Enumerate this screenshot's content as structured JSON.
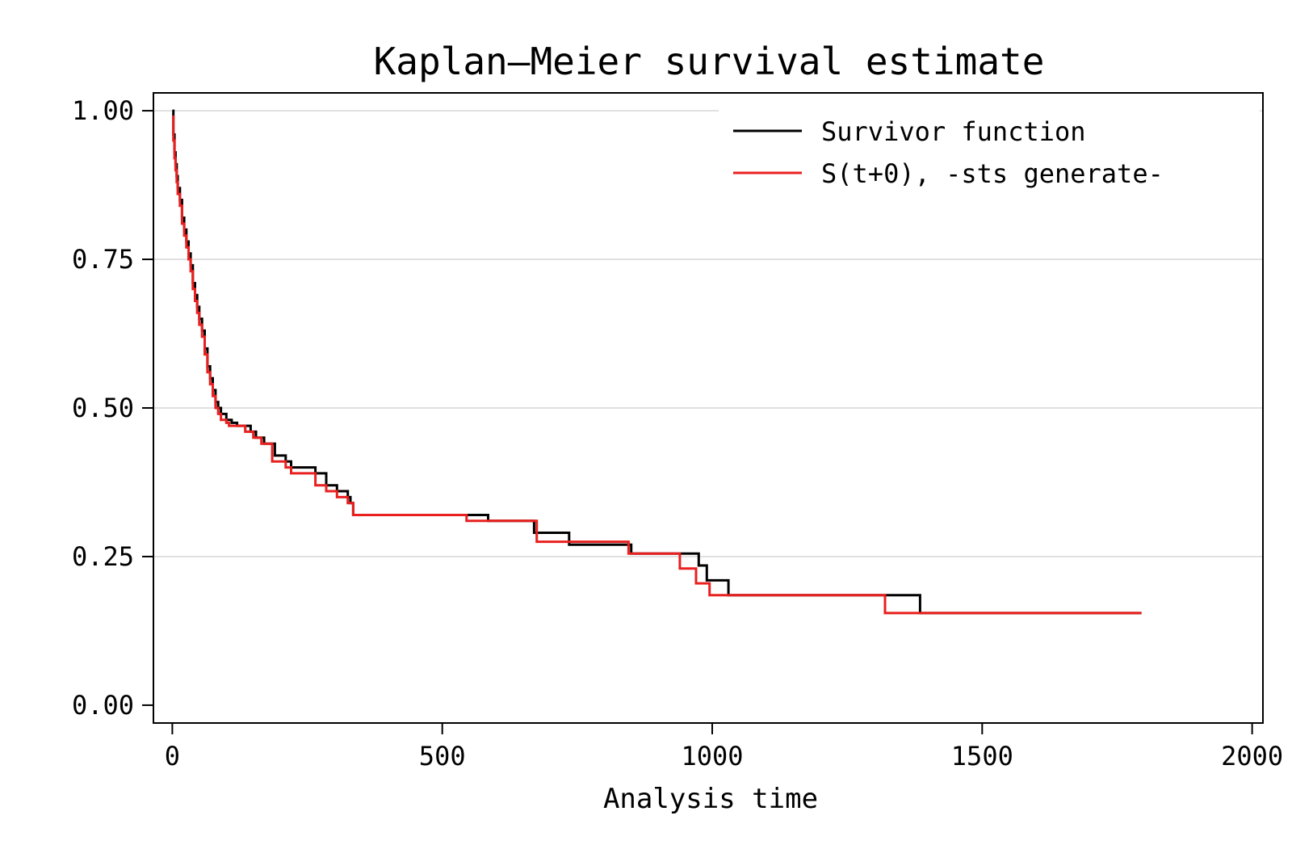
{
  "chart_data": {
    "type": "line",
    "step": true,
    "title": "Kaplan–Meier survival estimate",
    "xlabel": "Analysis time",
    "ylabel": "",
    "xlim": [
      -35,
      2020
    ],
    "ylim": [
      -0.03,
      1.03
    ],
    "xticks": [
      0,
      500,
      1000,
      1500,
      2000
    ],
    "xtick_labels": [
      "0",
      "500",
      "1000",
      "1500",
      "2000"
    ],
    "yticks": [
      0,
      0.25,
      0.5,
      0.75,
      1.0
    ],
    "ytick_labels": [
      "0.00",
      "0.25",
      "0.50",
      "0.75",
      "1.00"
    ],
    "grid": "horizontal",
    "legend_position": "top-right",
    "series": [
      {
        "name": "Survivor function",
        "color": "#000000",
        "x": [
          0,
          2,
          4,
          6,
          8,
          10,
          14,
          18,
          22,
          26,
          30,
          34,
          38,
          42,
          46,
          50,
          55,
          60,
          65,
          70,
          75,
          80,
          85,
          90,
          100,
          110,
          120,
          145,
          155,
          170,
          190,
          210,
          220,
          265,
          285,
          305,
          325,
          330,
          335,
          545,
          585,
          670,
          735,
          850,
          975,
          990,
          1030,
          1330,
          1385,
          1795
        ],
        "y": [
          1.0,
          0.96,
          0.93,
          0.91,
          0.89,
          0.87,
          0.85,
          0.82,
          0.8,
          0.78,
          0.76,
          0.74,
          0.71,
          0.69,
          0.67,
          0.65,
          0.63,
          0.6,
          0.57,
          0.55,
          0.53,
          0.51,
          0.5,
          0.49,
          0.48,
          0.475,
          0.47,
          0.46,
          0.45,
          0.44,
          0.42,
          0.41,
          0.4,
          0.39,
          0.37,
          0.36,
          0.35,
          0.34,
          0.32,
          0.32,
          0.31,
          0.29,
          0.27,
          0.255,
          0.235,
          0.21,
          0.185,
          0.185,
          0.155,
          0.155
        ]
      },
      {
        "name": "S(t+0), -sts generate-",
        "color": "#e8201f",
        "x": [
          0,
          2,
          4,
          6,
          8,
          10,
          14,
          18,
          22,
          26,
          30,
          34,
          38,
          42,
          46,
          50,
          55,
          60,
          65,
          70,
          75,
          80,
          85,
          90,
          100,
          105,
          135,
          150,
          165,
          185,
          210,
          220,
          265,
          285,
          305,
          325,
          335,
          545,
          675,
          845,
          940,
          970,
          995,
          1320,
          1795
        ],
        "y": [
          0.99,
          0.95,
          0.92,
          0.9,
          0.88,
          0.86,
          0.84,
          0.81,
          0.79,
          0.77,
          0.75,
          0.73,
          0.7,
          0.68,
          0.66,
          0.64,
          0.62,
          0.59,
          0.56,
          0.54,
          0.52,
          0.5,
          0.49,
          0.48,
          0.475,
          0.47,
          0.46,
          0.45,
          0.44,
          0.41,
          0.4,
          0.39,
          0.37,
          0.36,
          0.35,
          0.34,
          0.32,
          0.31,
          0.275,
          0.255,
          0.23,
          0.205,
          0.185,
          0.155,
          0.155
        ]
      }
    ]
  }
}
